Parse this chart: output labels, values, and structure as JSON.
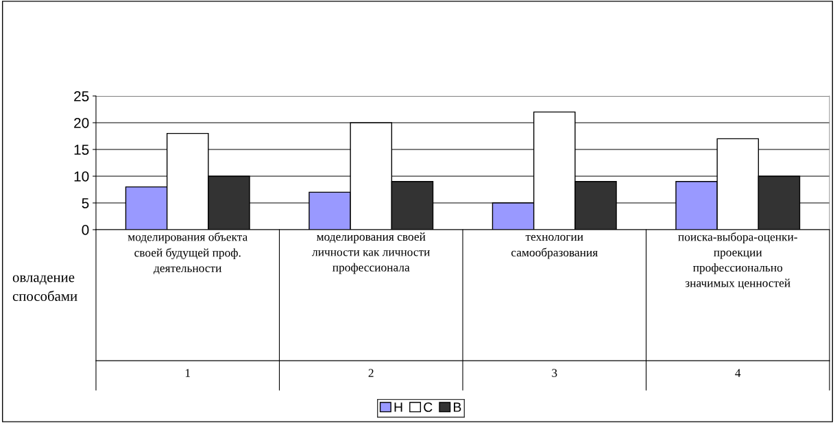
{
  "chart_data": {
    "type": "bar",
    "categories": [
      "моделирования объекта\nсвоей будущей проф.\nдеятельности",
      "моделирования своей\nличности как личности\nпрофессионала",
      "технологии\nсамообразования",
      "поиска-выбора-оценки-\nпроекции\nпрофессионально\nзначимых ценностей"
    ],
    "series": [
      {
        "name": "Н",
        "color": "#9999ff",
        "values": [
          8,
          7,
          5,
          9
        ]
      },
      {
        "name": "С",
        "color": "#ffffff",
        "values": [
          18,
          20,
          22,
          17
        ]
      },
      {
        "name": "В",
        "color": "#333333",
        "values": [
          10,
          9,
          9,
          10
        ]
      }
    ],
    "xlabel": "овладение\nспособами",
    "annotations": [
      "1",
      "2",
      "3",
      "4"
    ],
    "ylim": [
      0,
      25
    ],
    "yticks": [
      0,
      5,
      10,
      15,
      20,
      25
    ],
    "grid": "y",
    "legend": "bottom"
  }
}
